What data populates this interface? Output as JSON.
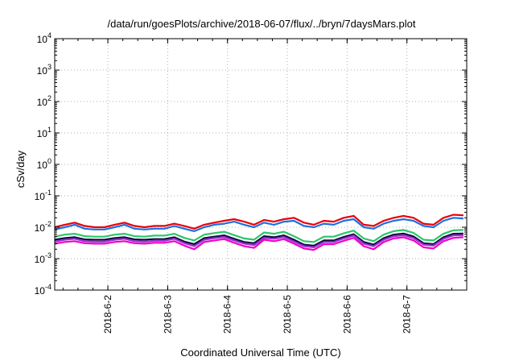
{
  "chart_data": {
    "type": "line",
    "title": "/data/run/goesPlots/archive/2018-06-07/flux/../bryn/7daysMars.plot",
    "xlabel": "Coordinated Universal Time (UTC)",
    "ylabel": "cSv/day",
    "yscale": "log",
    "ylim": [
      0.0001,
      10000
    ],
    "xlim": [
      "2018-06-01T02:40",
      "2018-06-08T00:00"
    ],
    "grid": true,
    "y_ticks": [
      {
        "base": "10",
        "exp": "-4"
      },
      {
        "base": "10",
        "exp": "-3"
      },
      {
        "base": "10",
        "exp": "-2"
      },
      {
        "base": "10",
        "exp": "-1"
      },
      {
        "base": "10",
        "exp": "0"
      },
      {
        "base": "10",
        "exp": "1"
      },
      {
        "base": "10",
        "exp": "2"
      },
      {
        "base": "10",
        "exp": "3"
      },
      {
        "base": "10",
        "exp": "4"
      }
    ],
    "x_ticks": [
      {
        "label": "2018-6-2",
        "date": "2018-06-02T00:00"
      },
      {
        "label": "2018-6-3",
        "date": "2018-06-03T00:00"
      },
      {
        "label": "2018-6-4",
        "date": "2018-06-04T00:00"
      },
      {
        "label": "2018-6-5",
        "date": "2018-06-05T00:00"
      },
      {
        "label": "2018-6-6",
        "date": "2018-06-06T00:00"
      },
      {
        "label": "2018-6-7",
        "date": "2018-06-07T00:00"
      }
    ],
    "x": [
      "2018-06-01T02:40",
      "2018-06-01T06:40",
      "2018-06-01T10:40",
      "2018-06-01T14:40",
      "2018-06-01T18:40",
      "2018-06-01T22:40",
      "2018-06-02T02:40",
      "2018-06-02T06:40",
      "2018-06-02T10:40",
      "2018-06-02T14:40",
      "2018-06-02T18:40",
      "2018-06-02T22:40",
      "2018-06-03T02:40",
      "2018-06-03T06:40",
      "2018-06-03T10:40",
      "2018-06-03T14:40",
      "2018-06-03T18:40",
      "2018-06-03T22:40",
      "2018-06-04T02:40",
      "2018-06-04T06:40",
      "2018-06-04T10:40",
      "2018-06-04T14:40",
      "2018-06-04T18:40",
      "2018-06-04T22:40",
      "2018-06-05T02:40",
      "2018-06-05T06:40",
      "2018-06-05T10:40",
      "2018-06-05T14:40",
      "2018-06-05T18:40",
      "2018-06-05T22:40",
      "2018-06-06T02:40",
      "2018-06-06T06:40",
      "2018-06-06T10:40",
      "2018-06-06T14:40",
      "2018-06-06T18:40",
      "2018-06-06T22:40",
      "2018-06-07T02:40",
      "2018-06-07T06:40",
      "2018-06-07T10:40",
      "2018-06-07T14:40",
      "2018-06-07T18:40",
      "2018-06-07T22:40"
    ],
    "series": [
      {
        "color": "#e8000b",
        "values": [
          0.01,
          0.012,
          0.014,
          0.011,
          0.01,
          0.01,
          0.012,
          0.014,
          0.011,
          0.01,
          0.011,
          0.011,
          0.013,
          0.011,
          0.009,
          0.012,
          0.014,
          0.016,
          0.018,
          0.015,
          0.012,
          0.017,
          0.015,
          0.018,
          0.02,
          0.014,
          0.012,
          0.016,
          0.015,
          0.02,
          0.023,
          0.012,
          0.011,
          0.016,
          0.02,
          0.023,
          0.02,
          0.013,
          0.012,
          0.02,
          0.025,
          0.024
        ]
      },
      {
        "color": "#1f6fe0",
        "values": [
          0.0085,
          0.01,
          0.012,
          0.009,
          0.0085,
          0.0085,
          0.01,
          0.012,
          0.009,
          0.0085,
          0.009,
          0.009,
          0.011,
          0.009,
          0.0075,
          0.01,
          0.012,
          0.013,
          0.015,
          0.012,
          0.01,
          0.014,
          0.012,
          0.015,
          0.016,
          0.011,
          0.01,
          0.013,
          0.012,
          0.016,
          0.018,
          0.01,
          0.009,
          0.013,
          0.016,
          0.018,
          0.016,
          0.011,
          0.01,
          0.016,
          0.02,
          0.019
        ]
      },
      {
        "color": "#2cc56a",
        "values": [
          0.005,
          0.0058,
          0.0062,
          0.0052,
          0.005,
          0.005,
          0.0058,
          0.0062,
          0.0052,
          0.005,
          0.0054,
          0.0054,
          0.0062,
          0.0046,
          0.0038,
          0.0058,
          0.0065,
          0.0072,
          0.0056,
          0.0044,
          0.004,
          0.0068,
          0.0062,
          0.0072,
          0.0052,
          0.0036,
          0.0034,
          0.005,
          0.005,
          0.0064,
          0.0078,
          0.0044,
          0.0036,
          0.0058,
          0.0075,
          0.0082,
          0.0066,
          0.004,
          0.0038,
          0.0062,
          0.008,
          0.0082
        ]
      },
      {
        "color": "#0d0d3a",
        "values": [
          0.004,
          0.0045,
          0.0048,
          0.0041,
          0.004,
          0.004,
          0.0045,
          0.0048,
          0.0041,
          0.004,
          0.0042,
          0.0042,
          0.0048,
          0.0035,
          0.0029,
          0.0045,
          0.005,
          0.0055,
          0.0043,
          0.0034,
          0.0031,
          0.0052,
          0.0048,
          0.0055,
          0.004,
          0.0028,
          0.0026,
          0.0038,
          0.0038,
          0.0049,
          0.006,
          0.0034,
          0.0028,
          0.0045,
          0.0058,
          0.0063,
          0.0051,
          0.0031,
          0.0029,
          0.0048,
          0.0062,
          0.0063
        ]
      },
      {
        "color": "#9b2fd6",
        "values": [
          0.0035,
          0.004,
          0.0043,
          0.0036,
          0.0035,
          0.0035,
          0.004,
          0.0043,
          0.0036,
          0.0035,
          0.0037,
          0.0037,
          0.0043,
          0.0031,
          0.0025,
          0.004,
          0.0045,
          0.0049,
          0.0038,
          0.003,
          0.0027,
          0.0046,
          0.0043,
          0.0049,
          0.0035,
          0.0025,
          0.0023,
          0.0034,
          0.0034,
          0.0044,
          0.0054,
          0.003,
          0.0025,
          0.004,
          0.0052,
          0.0056,
          0.0045,
          0.0028,
          0.0026,
          0.0043,
          0.0055,
          0.0056
        ]
      },
      {
        "color": "#f000c8",
        "values": [
          0.003,
          0.0034,
          0.0036,
          0.0031,
          0.003,
          0.003,
          0.0034,
          0.0036,
          0.0031,
          0.003,
          0.0032,
          0.0032,
          0.0036,
          0.0026,
          0.002,
          0.0034,
          0.0038,
          0.0042,
          0.0032,
          0.0025,
          0.0022,
          0.004,
          0.0036,
          0.0042,
          0.003,
          0.0021,
          0.0019,
          0.0029,
          0.0029,
          0.0037,
          0.0046,
          0.0025,
          0.002,
          0.0034,
          0.0044,
          0.0048,
          0.0038,
          0.0023,
          0.0021,
          0.0036,
          0.0046,
          0.0048
        ]
      }
    ]
  }
}
